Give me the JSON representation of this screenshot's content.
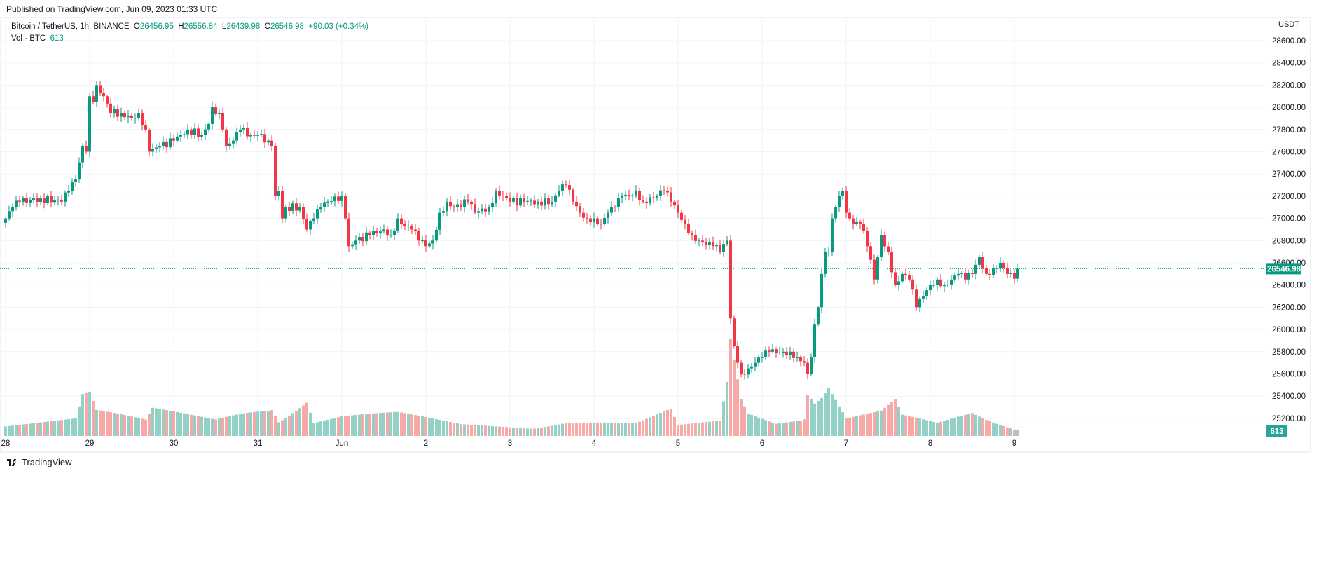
{
  "header": {
    "published": "Published on TradingView.com, Jun 09, 2023 01:33 UTC"
  },
  "legend": {
    "symbol": "Bitcoin / TetherUS, 1h, BINANCE",
    "o_label": "O",
    "o": "26456.95",
    "h_label": "H",
    "h": "26556.84",
    "l_label": "L",
    "l": "26439.98",
    "c_label": "C",
    "c": "26546.98",
    "change": "+90.03 (+0.34%)",
    "vol_label": "Vol · BTC",
    "vol": "613"
  },
  "brand": {
    "name": "TradingView"
  },
  "colors": {
    "up": "#089981",
    "down": "#f23645",
    "up_vol": "#93d1c6",
    "down_vol": "#f7a9a7"
  },
  "chart_data": {
    "type": "candlestick",
    "title": "Bitcoin / TetherUS, 1h, BINANCE",
    "currency_label": "USDT",
    "interval": "1h",
    "ylim": [
      25100,
      28700
    ],
    "y_ticks": [
      "28600.00",
      "28400.00",
      "28200.00",
      "28000.00",
      "27800.00",
      "27600.00",
      "27400.00",
      "27200.00",
      "27000.00",
      "26800.00",
      "26600.00",
      "26400.00",
      "26200.00",
      "26000.00",
      "25800.00",
      "25600.00",
      "25400.00",
      "25200.00"
    ],
    "x_ticks": [
      {
        "label": "28",
        "hour": 0
      },
      {
        "label": "29",
        "hour": 24
      },
      {
        "label": "30",
        "hour": 48
      },
      {
        "label": "31",
        "hour": 72
      },
      {
        "label": "Jun",
        "hour": 96
      },
      {
        "label": "2",
        "hour": 120
      },
      {
        "label": "3",
        "hour": 144
      },
      {
        "label": "4",
        "hour": 168
      },
      {
        "label": "5",
        "hour": 192
      },
      {
        "label": "6",
        "hour": 216
      },
      {
        "label": "7",
        "hour": 240
      },
      {
        "label": "8",
        "hour": 264
      },
      {
        "label": "9",
        "hour": 288
      }
    ],
    "last_price": 26546.98,
    "last_price_label": "26546.98",
    "last_volume": 613,
    "last_volume_label": "613",
    "close_keypoints": [
      [
        0,
        27000
      ],
      [
        2,
        27100
      ],
      [
        4,
        27150
      ],
      [
        10,
        27180
      ],
      [
        16,
        27150
      ],
      [
        18,
        27250
      ],
      [
        20,
        27350
      ],
      [
        22,
        27650
      ],
      [
        23,
        27600
      ],
      [
        24,
        28100
      ],
      [
        25,
        28050
      ],
      [
        26,
        28200
      ],
      [
        28,
        28100
      ],
      [
        30,
        27950
      ],
      [
        33,
        27950
      ],
      [
        36,
        27900
      ],
      [
        38,
        27950
      ],
      [
        40,
        27800
      ],
      [
        41,
        27600
      ],
      [
        44,
        27650
      ],
      [
        48,
        27700
      ],
      [
        50,
        27750
      ],
      [
        52,
        27800
      ],
      [
        56,
        27750
      ],
      [
        58,
        27850
      ],
      [
        59,
        28000
      ],
      [
        61,
        27950
      ],
      [
        62,
        27800
      ],
      [
        63,
        27650
      ],
      [
        65,
        27700
      ],
      [
        67,
        27800
      ],
      [
        70,
        27750
      ],
      [
        72,
        27750
      ],
      [
        75,
        27700
      ],
      [
        76,
        27650
      ],
      [
        77,
        27200
      ],
      [
        78,
        27250
      ],
      [
        79,
        27000
      ],
      [
        80,
        27100
      ],
      [
        84,
        27100
      ],
      [
        86,
        26900
      ],
      [
        88,
        27000
      ],
      [
        90,
        27100
      ],
      [
        92,
        27150
      ],
      [
        96,
        27200
      ],
      [
        97,
        27000
      ],
      [
        98,
        26750
      ],
      [
        100,
        26800
      ],
      [
        104,
        26850
      ],
      [
        108,
        26900
      ],
      [
        110,
        26850
      ],
      [
        112,
        27000
      ],
      [
        113,
        26950
      ],
      [
        116,
        26900
      ],
      [
        118,
        26800
      ],
      [
        120,
        26750
      ],
      [
        122,
        26800
      ],
      [
        124,
        27050
      ],
      [
        126,
        27150
      ],
      [
        128,
        27100
      ],
      [
        132,
        27150
      ],
      [
        134,
        27050
      ],
      [
        138,
        27100
      ],
      [
        140,
        27250
      ],
      [
        142,
        27200
      ],
      [
        144,
        27150
      ],
      [
        148,
        27150
      ],
      [
        152,
        27150
      ],
      [
        156,
        27150
      ],
      [
        158,
        27250
      ],
      [
        160,
        27300
      ],
      [
        162,
        27150
      ],
      [
        164,
        27050
      ],
      [
        166,
        27000
      ],
      [
        168,
        27000
      ],
      [
        170,
        26950
      ],
      [
        172,
        27050
      ],
      [
        174,
        27100
      ],
      [
        176,
        27200
      ],
      [
        178,
        27200
      ],
      [
        180,
        27250
      ],
      [
        182,
        27150
      ],
      [
        186,
        27200
      ],
      [
        188,
        27250
      ],
      [
        190,
        27150
      ],
      [
        192,
        27050
      ],
      [
        194,
        26950
      ],
      [
        196,
        26850
      ],
      [
        198,
        26800
      ],
      [
        202,
        26750
      ],
      [
        204,
        26700
      ],
      [
        206,
        26800
      ],
      [
        207,
        26100
      ],
      [
        208,
        25850
      ],
      [
        209,
        25700
      ],
      [
        210,
        25600
      ],
      [
        212,
        25650
      ],
      [
        214,
        25700
      ],
      [
        216,
        25750
      ],
      [
        218,
        25800
      ],
      [
        222,
        25800
      ],
      [
        224,
        25800
      ],
      [
        226,
        25750
      ],
      [
        228,
        25700
      ],
      [
        229,
        25600
      ],
      [
        230,
        25750
      ],
      [
        231,
        26050
      ],
      [
        232,
        26200
      ],
      [
        233,
        26500
      ],
      [
        234,
        26700
      ],
      [
        235,
        26700
      ],
      [
        236,
        27000
      ],
      [
        237,
        27100
      ],
      [
        238,
        27200
      ],
      [
        239,
        27250
      ],
      [
        240,
        27050
      ],
      [
        241,
        27000
      ],
      [
        242,
        26950
      ],
      [
        244,
        26950
      ],
      [
        246,
        26750
      ],
      [
        248,
        26450
      ],
      [
        250,
        26850
      ],
      [
        252,
        26700
      ],
      [
        254,
        26400
      ],
      [
        256,
        26500
      ],
      [
        258,
        26450
      ],
      [
        260,
        26200
      ],
      [
        262,
        26300
      ],
      [
        264,
        26400
      ],
      [
        266,
        26450
      ],
      [
        268,
        26400
      ],
      [
        270,
        26450
      ],
      [
        272,
        26500
      ],
      [
        274,
        26450
      ],
      [
        276,
        26500
      ],
      [
        278,
        26650
      ],
      [
        280,
        26500
      ],
      [
        282,
        26550
      ],
      [
        284,
        26600
      ],
      [
        286,
        26500
      ],
      [
        288,
        26457
      ],
      [
        289,
        26547
      ]
    ],
    "volume_keypoints": [
      [
        0,
        1500
      ],
      [
        20,
        1800
      ],
      [
        22,
        4200
      ],
      [
        24,
        4300
      ],
      [
        26,
        2500
      ],
      [
        40,
        1500
      ],
      [
        42,
        2600
      ],
      [
        60,
        1800
      ],
      [
        76,
        4000
      ],
      [
        78,
        2000
      ],
      [
        86,
        4000
      ],
      [
        88,
        1500
      ],
      [
        96,
        2000
      ],
      [
        112,
        2200
      ],
      [
        130,
        1200
      ],
      [
        150,
        1100
      ],
      [
        160,
        1600
      ],
      [
        180,
        1200
      ],
      [
        190,
        2500
      ],
      [
        192,
        1000
      ],
      [
        204,
        1500
      ],
      [
        206,
        5500
      ],
      [
        207,
        10000
      ],
      [
        208,
        8000
      ],
      [
        210,
        4000
      ],
      [
        212,
        2500
      ],
      [
        220,
        1600
      ],
      [
        228,
        2500
      ],
      [
        229,
        6000
      ],
      [
        231,
        4500
      ],
      [
        233,
        5000
      ],
      [
        235,
        6000
      ],
      [
        238,
        3500
      ],
      [
        240,
        2000
      ],
      [
        250,
        2500
      ],
      [
        254,
        3500
      ],
      [
        256,
        2000
      ],
      [
        266,
        1200
      ],
      [
        276,
        2200
      ],
      [
        280,
        1600
      ],
      [
        289,
        613
      ]
    ]
  }
}
